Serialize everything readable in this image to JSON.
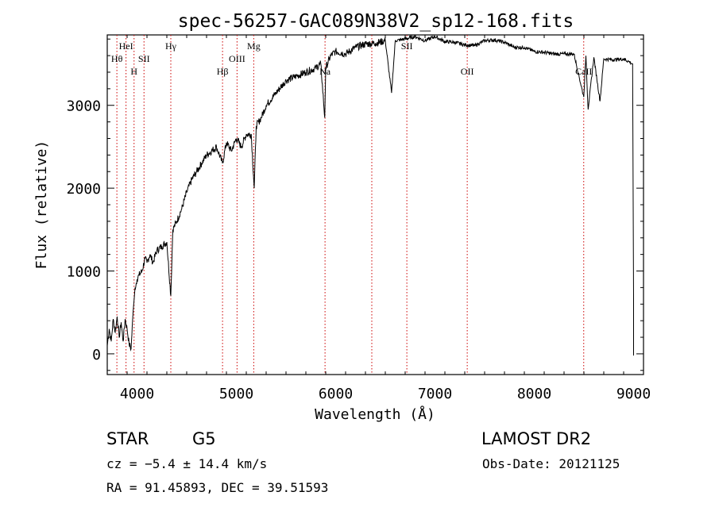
{
  "chart_data": {
    "type": "line",
    "title": "spec-56257-GAC089N38V2_sp12-168.fits",
    "xlabel": "Wavelength (Å)",
    "ylabel": "Flux (relative)",
    "xlim": [
      3700,
      9100
    ],
    "ylim": [
      -250,
      3850
    ],
    "xticks": [
      4000,
      5000,
      6000,
      7000,
      8000,
      9000
    ],
    "xtick_labels": [
      "4000",
      "5000",
      "6000",
      "7000",
      "8000",
      "9000"
    ],
    "yticks": [
      0,
      1000,
      2000,
      3000
    ],
    "ytick_labels": [
      "0",
      "1000",
      "2000",
      "3000"
    ],
    "line_color": "#000000",
    "marker_color": "#cc0000",
    "series": [
      {
        "name": "flux",
        "x": [
          3700,
          3720,
          3740,
          3760,
          3780,
          3800,
          3820,
          3840,
          3860,
          3880,
          3900,
          3920,
          3940,
          3960,
          3970,
          3980,
          4000,
          4020,
          4050,
          4080,
          4100,
          4130,
          4160,
          4200,
          4250,
          4300,
          4340,
          4360,
          4400,
          4450,
          4500,
          4550,
          4600,
          4650,
          4700,
          4750,
          4800,
          4860,
          4900,
          4950,
          5000,
          5050,
          5100,
          5150,
          5180,
          5200,
          5250,
          5300,
          5400,
          5500,
          5600,
          5700,
          5800,
          5850,
          5890,
          5900,
          5950,
          6000,
          6100,
          6200,
          6300,
          6400,
          6500,
          6563,
          6600,
          6700,
          6800,
          6900,
          7000,
          7100,
          7200,
          7300,
          7400,
          7500,
          7600,
          7700,
          7800,
          7900,
          8000,
          8100,
          8200,
          8300,
          8400,
          8498,
          8520,
          8542,
          8600,
          8662,
          8700,
          8800,
          8900,
          8950,
          8990,
          9000
        ],
        "y": [
          100,
          300,
          150,
          420,
          260,
          450,
          200,
          380,
          150,
          420,
          300,
          120,
          60,
          500,
          650,
          800,
          900,
          950,
          1000,
          1150,
          1100,
          1200,
          1100,
          1250,
          1300,
          1350,
          700,
          1500,
          1600,
          1750,
          1950,
          2100,
          2200,
          2300,
          2400,
          2450,
          2500,
          2300,
          2550,
          2450,
          2600,
          2500,
          2650,
          2650,
          2000,
          2750,
          2850,
          3000,
          3150,
          3300,
          3350,
          3400,
          3450,
          3500,
          2850,
          3450,
          3600,
          3650,
          3620,
          3700,
          3740,
          3750,
          3780,
          3150,
          3780,
          3800,
          3830,
          3780,
          3830,
          3770,
          3760,
          3730,
          3720,
          3780,
          3790,
          3760,
          3700,
          3700,
          3650,
          3640,
          3620,
          3620,
          3620,
          3100,
          3600,
          2950,
          3580,
          3050,
          3560,
          3550,
          3560,
          3530,
          3500,
          650
        ]
      }
    ],
    "lines": [
      {
        "label": "Hθ",
        "x": 3797,
        "row": 2
      },
      {
        "label": "HeI",
        "x": 3889,
        "row": 1
      },
      {
        "label": "H",
        "x": 3970,
        "row": 3
      },
      {
        "label": "SII",
        "x": 4070,
        "row": 2
      },
      {
        "label": "Hγ",
        "x": 4340,
        "row": 1
      },
      {
        "label": "Hβ",
        "x": 4861,
        "row": 3
      },
      {
        "label": "OIII",
        "x": 5007,
        "row": 2
      },
      {
        "label": "Mg",
        "x": 5175,
        "row": 1
      },
      {
        "label": "Na",
        "x": 5893,
        "row": 3
      },
      {
        "label": "",
        "x": 6364,
        "row": 0
      },
      {
        "label": "SII",
        "x": 6717,
        "row": 1
      },
      {
        "label": "OII",
        "x": 7325,
        "row": 3
      },
      {
        "label": "CaII",
        "x": 8498,
        "row": 3
      }
    ]
  },
  "info": {
    "class": "STAR",
    "subclass": "G5",
    "survey": "LAMOST DR2",
    "cz": "cz = −5.4 ± 14.4 km/s",
    "obs_date": "Obs-Date: 20121125",
    "coords": "RA =  91.45893, DEC =  39.51593"
  }
}
